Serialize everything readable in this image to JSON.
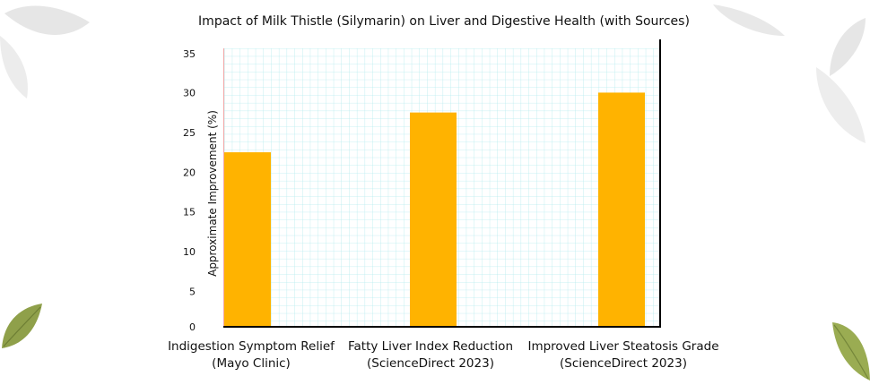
{
  "chart_data": {
    "type": "bar",
    "title": "Impact of Milk Thistle (Silymarin) on Liver and Digestive Health (with Sources)",
    "ylabel": "Approximate Improvement (%)",
    "xlabel": "",
    "ylim": [
      0,
      35
    ],
    "yticks": [
      0,
      5,
      10,
      15,
      20,
      25,
      30,
      35
    ],
    "grid": true,
    "categories": [
      {
        "line1": "Indigestion Symptom Relief",
        "line2": "(Mayo Clinic)"
      },
      {
        "line1": "Fatty Liver Index Reduction",
        "line2": "(ScienceDirect 2023)"
      },
      {
        "line1": "Improved Liver Steatosis Grade",
        "line2": "(ScienceDirect 2023)"
      }
    ],
    "values": [
      22.5,
      27.5,
      30
    ],
    "colors": {
      "bar": "#ffb300",
      "grid": "#9fe3e8",
      "axis": "#000000"
    }
  }
}
